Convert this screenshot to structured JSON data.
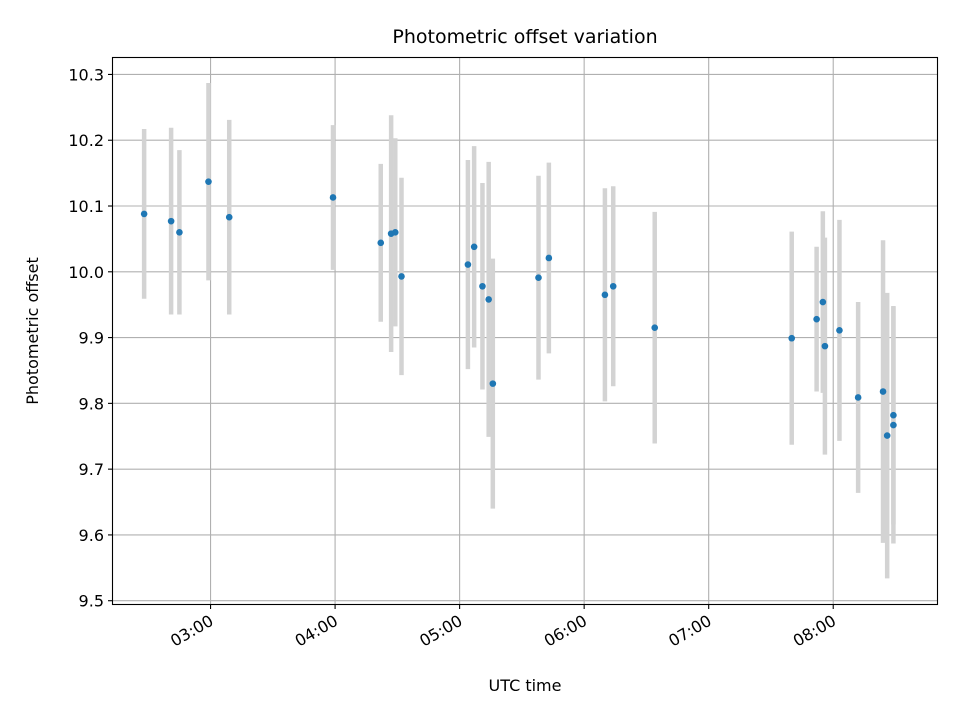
{
  "chart_data": {
    "type": "scatter",
    "title": "Photometric offset variation",
    "xlabel": "UTC time",
    "ylabel": "Photometric offset",
    "xlim": [
      "02:13",
      "08:50"
    ],
    "ylim": [
      9.495,
      10.325
    ],
    "grid": true,
    "x_ticks": [
      "03:00",
      "04:00",
      "05:00",
      "06:00",
      "07:00",
      "08:00"
    ],
    "y_ticks": [
      9.5,
      9.6,
      9.7,
      9.8,
      9.9,
      10.0,
      10.1,
      10.2,
      10.3
    ],
    "y_tick_labels": [
      "9.5",
      "9.6",
      "9.7",
      "9.8",
      "9.9",
      "10.0",
      "10.1",
      "10.2",
      "10.3"
    ],
    "colors": {
      "point": "#1f77b4",
      "errorbar": "#d3d3d3",
      "grid": "#b0b0b0"
    },
    "points": [
      {
        "x": "02:28",
        "y": 10.088,
        "err": 0.129
      },
      {
        "x": "02:41",
        "y": 10.077,
        "err": 0.142
      },
      {
        "x": "02:45",
        "y": 10.06,
        "err": 0.125
      },
      {
        "x": "02:59",
        "y": 10.137,
        "err": 0.15
      },
      {
        "x": "03:09",
        "y": 10.083,
        "err": 0.148
      },
      {
        "x": "03:59",
        "y": 10.113,
        "err": 0.11
      },
      {
        "x": "04:22",
        "y": 10.044,
        "err": 0.12
      },
      {
        "x": "04:27",
        "y": 10.058,
        "err": 0.18
      },
      {
        "x": "04:29",
        "y": 10.06,
        "err": 0.143
      },
      {
        "x": "04:32",
        "y": 9.993,
        "err": 0.15
      },
      {
        "x": "05:04",
        "y": 10.011,
        "err": 0.159
      },
      {
        "x": "05:07",
        "y": 10.038,
        "err": 0.153
      },
      {
        "x": "05:11",
        "y": 9.978,
        "err": 0.157
      },
      {
        "x": "05:14",
        "y": 9.958,
        "err": 0.209
      },
      {
        "x": "05:16",
        "y": 9.83,
        "err": 0.19
      },
      {
        "x": "05:38",
        "y": 9.991,
        "err": 0.155
      },
      {
        "x": "05:43",
        "y": 10.021,
        "err": 0.145
      },
      {
        "x": "06:10",
        "y": 9.965,
        "err": 0.162
      },
      {
        "x": "06:14",
        "y": 9.978,
        "err": 0.152
      },
      {
        "x": "06:34",
        "y": 9.915,
        "err": 0.176
      },
      {
        "x": "07:40",
        "y": 9.899,
        "err": 0.162
      },
      {
        "x": "07:52",
        "y": 9.928,
        "err": 0.11
      },
      {
        "x": "07:55",
        "y": 9.954,
        "err": 0.138
      },
      {
        "x": "07:56",
        "y": 9.887,
        "err": 0.165
      },
      {
        "x": "08:03",
        "y": 9.911,
        "err": 0.168
      },
      {
        "x": "08:12",
        "y": 9.809,
        "err": 0.145
      },
      {
        "x": "08:24",
        "y": 9.818,
        "err": 0.23
      },
      {
        "x": "08:26",
        "y": 9.751,
        "err": 0.217
      },
      {
        "x": "08:29",
        "y": 9.782,
        "err": 0.166
      },
      {
        "x": "08:29",
        "y": 9.767,
        "err": 0.18
      }
    ]
  }
}
